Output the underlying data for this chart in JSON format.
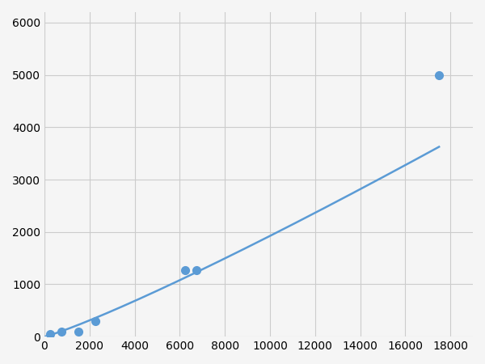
{
  "x_points": [
    250,
    750,
    1500,
    2250,
    6250,
    6750,
    17500
  ],
  "y_points": [
    50,
    100,
    100,
    300,
    1270,
    1270,
    5000
  ],
  "line_color": "#5b9bd5",
  "marker_color": "#5b9bd5",
  "marker_size": 7,
  "line_width": 1.8,
  "xlim": [
    0,
    19000
  ],
  "ylim": [
    0,
    6200
  ],
  "xticks": [
    0,
    2000,
    4000,
    6000,
    8000,
    10000,
    12000,
    14000,
    16000,
    18000
  ],
  "yticks": [
    0,
    1000,
    2000,
    3000,
    4000,
    5000,
    6000
  ],
  "grid_color": "#cccccc",
  "background_color": "#f5f5f5",
  "tick_fontsize": 10
}
